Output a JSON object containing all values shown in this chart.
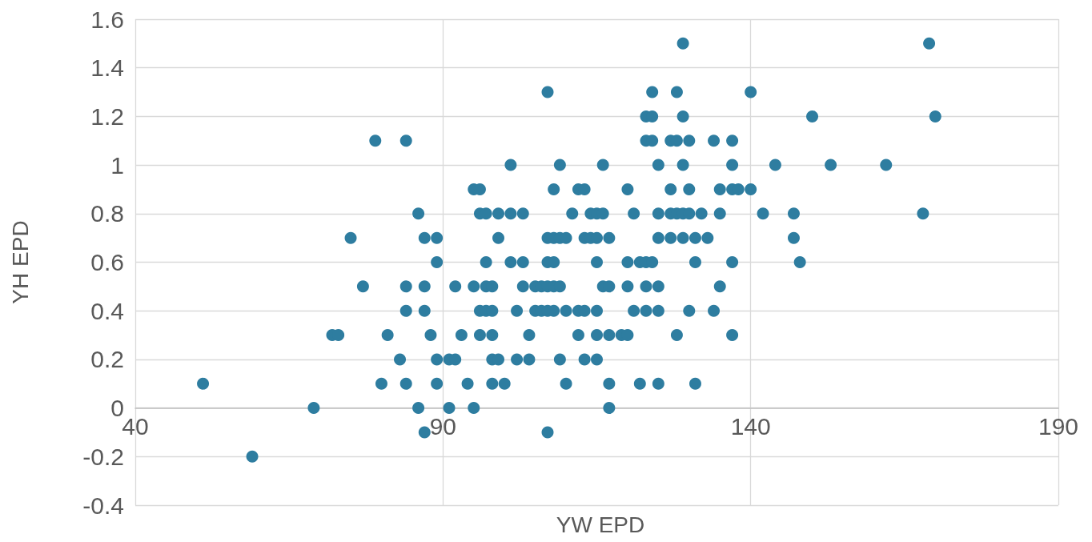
{
  "chart_data": {
    "type": "scatter",
    "xlabel": "YW EPD",
    "ylabel": "YH EPD",
    "xlim": [
      40,
      190
    ],
    "xticks": [
      40,
      90,
      140,
      190
    ],
    "ylim": [
      -0.4,
      1.6
    ],
    "yticks": [
      -0.4,
      -0.2,
      0,
      0.2,
      0.4,
      0.6,
      0.8,
      1,
      1.2,
      1.4,
      1.6
    ],
    "grid": true,
    "marker": "circle",
    "series": [
      {
        "color": "#2e7da0",
        "x": [
          129,
          169,
          107,
          124,
          128,
          140,
          123,
          124,
          129,
          150,
          170,
          79,
          84,
          123,
          124,
          127,
          128,
          130,
          134,
          137,
          101,
          109,
          116,
          125,
          129,
          137,
          144,
          153,
          162,
          95,
          96,
          108,
          112,
          113,
          120,
          127,
          130,
          135,
          137,
          138,
          140,
          86,
          96,
          97,
          99,
          101,
          103,
          111,
          114,
          115,
          116,
          121,
          125,
          127,
          128,
          129,
          130,
          132,
          135,
          142,
          147,
          168,
          75,
          87,
          89,
          99,
          107,
          108,
          109,
          110,
          113,
          114,
          115,
          117,
          125,
          127,
          129,
          131,
          133,
          147,
          89,
          97,
          101,
          103,
          107,
          108,
          115,
          120,
          122,
          123,
          124,
          131,
          137,
          148,
          77,
          84,
          87,
          92,
          95,
          97,
          98,
          103,
          105,
          106,
          107,
          108,
          109,
          116,
          117,
          120,
          123,
          125,
          135,
          84,
          87,
          96,
          97,
          98,
          102,
          105,
          106,
          107,
          108,
          110,
          112,
          113,
          115,
          121,
          123,
          125,
          130,
          134,
          72,
          73,
          81,
          88,
          93,
          96,
          98,
          104,
          112,
          115,
          117,
          119,
          120,
          128,
          137,
          83,
          89,
          91,
          92,
          98,
          99,
          102,
          104,
          109,
          113,
          115,
          51,
          80,
          84,
          89,
          94,
          98,
          100,
          110,
          117,
          122,
          125,
          131,
          69,
          86,
          91,
          95,
          117,
          87,
          107,
          59
        ],
        "values": [
          1.5,
          1.5,
          1.3,
          1.3,
          1.3,
          1.3,
          1.2,
          1.2,
          1.2,
          1.2,
          1.2,
          1.1,
          1.1,
          1.1,
          1.1,
          1.1,
          1.1,
          1.1,
          1.1,
          1.1,
          1,
          1,
          1,
          1,
          1,
          1,
          1,
          1,
          1,
          0.9,
          0.9,
          0.9,
          0.9,
          0.9,
          0.9,
          0.9,
          0.9,
          0.9,
          0.9,
          0.9,
          0.9,
          0.8,
          0.8,
          0.8,
          0.8,
          0.8,
          0.8,
          0.8,
          0.8,
          0.8,
          0.8,
          0.8,
          0.8,
          0.8,
          0.8,
          0.8,
          0.8,
          0.8,
          0.8,
          0.8,
          0.8,
          0.8,
          0.7,
          0.7,
          0.7,
          0.7,
          0.7,
          0.7,
          0.7,
          0.7,
          0.7,
          0.7,
          0.7,
          0.7,
          0.7,
          0.7,
          0.7,
          0.7,
          0.7,
          0.7,
          0.6,
          0.6,
          0.6,
          0.6,
          0.6,
          0.6,
          0.6,
          0.6,
          0.6,
          0.6,
          0.6,
          0.6,
          0.6,
          0.6,
          0.5,
          0.5,
          0.5,
          0.5,
          0.5,
          0.5,
          0.5,
          0.5,
          0.5,
          0.5,
          0.5,
          0.5,
          0.5,
          0.5,
          0.5,
          0.5,
          0.5,
          0.5,
          0.5,
          0.4,
          0.4,
          0.4,
          0.4,
          0.4,
          0.4,
          0.4,
          0.4,
          0.4,
          0.4,
          0.4,
          0.4,
          0.4,
          0.4,
          0.4,
          0.4,
          0.4,
          0.4,
          0.4,
          0.3,
          0.3,
          0.3,
          0.3,
          0.3,
          0.3,
          0.3,
          0.3,
          0.3,
          0.3,
          0.3,
          0.3,
          0.3,
          0.3,
          0.3,
          0.2,
          0.2,
          0.2,
          0.2,
          0.2,
          0.2,
          0.2,
          0.2,
          0.2,
          0.2,
          0.2,
          0.1,
          0.1,
          0.1,
          0.1,
          0.1,
          0.1,
          0.1,
          0.1,
          0.1,
          0.1,
          0.1,
          0.1,
          0,
          0,
          0,
          0,
          0,
          -0.1,
          -0.1,
          -0.2
        ]
      }
    ]
  }
}
